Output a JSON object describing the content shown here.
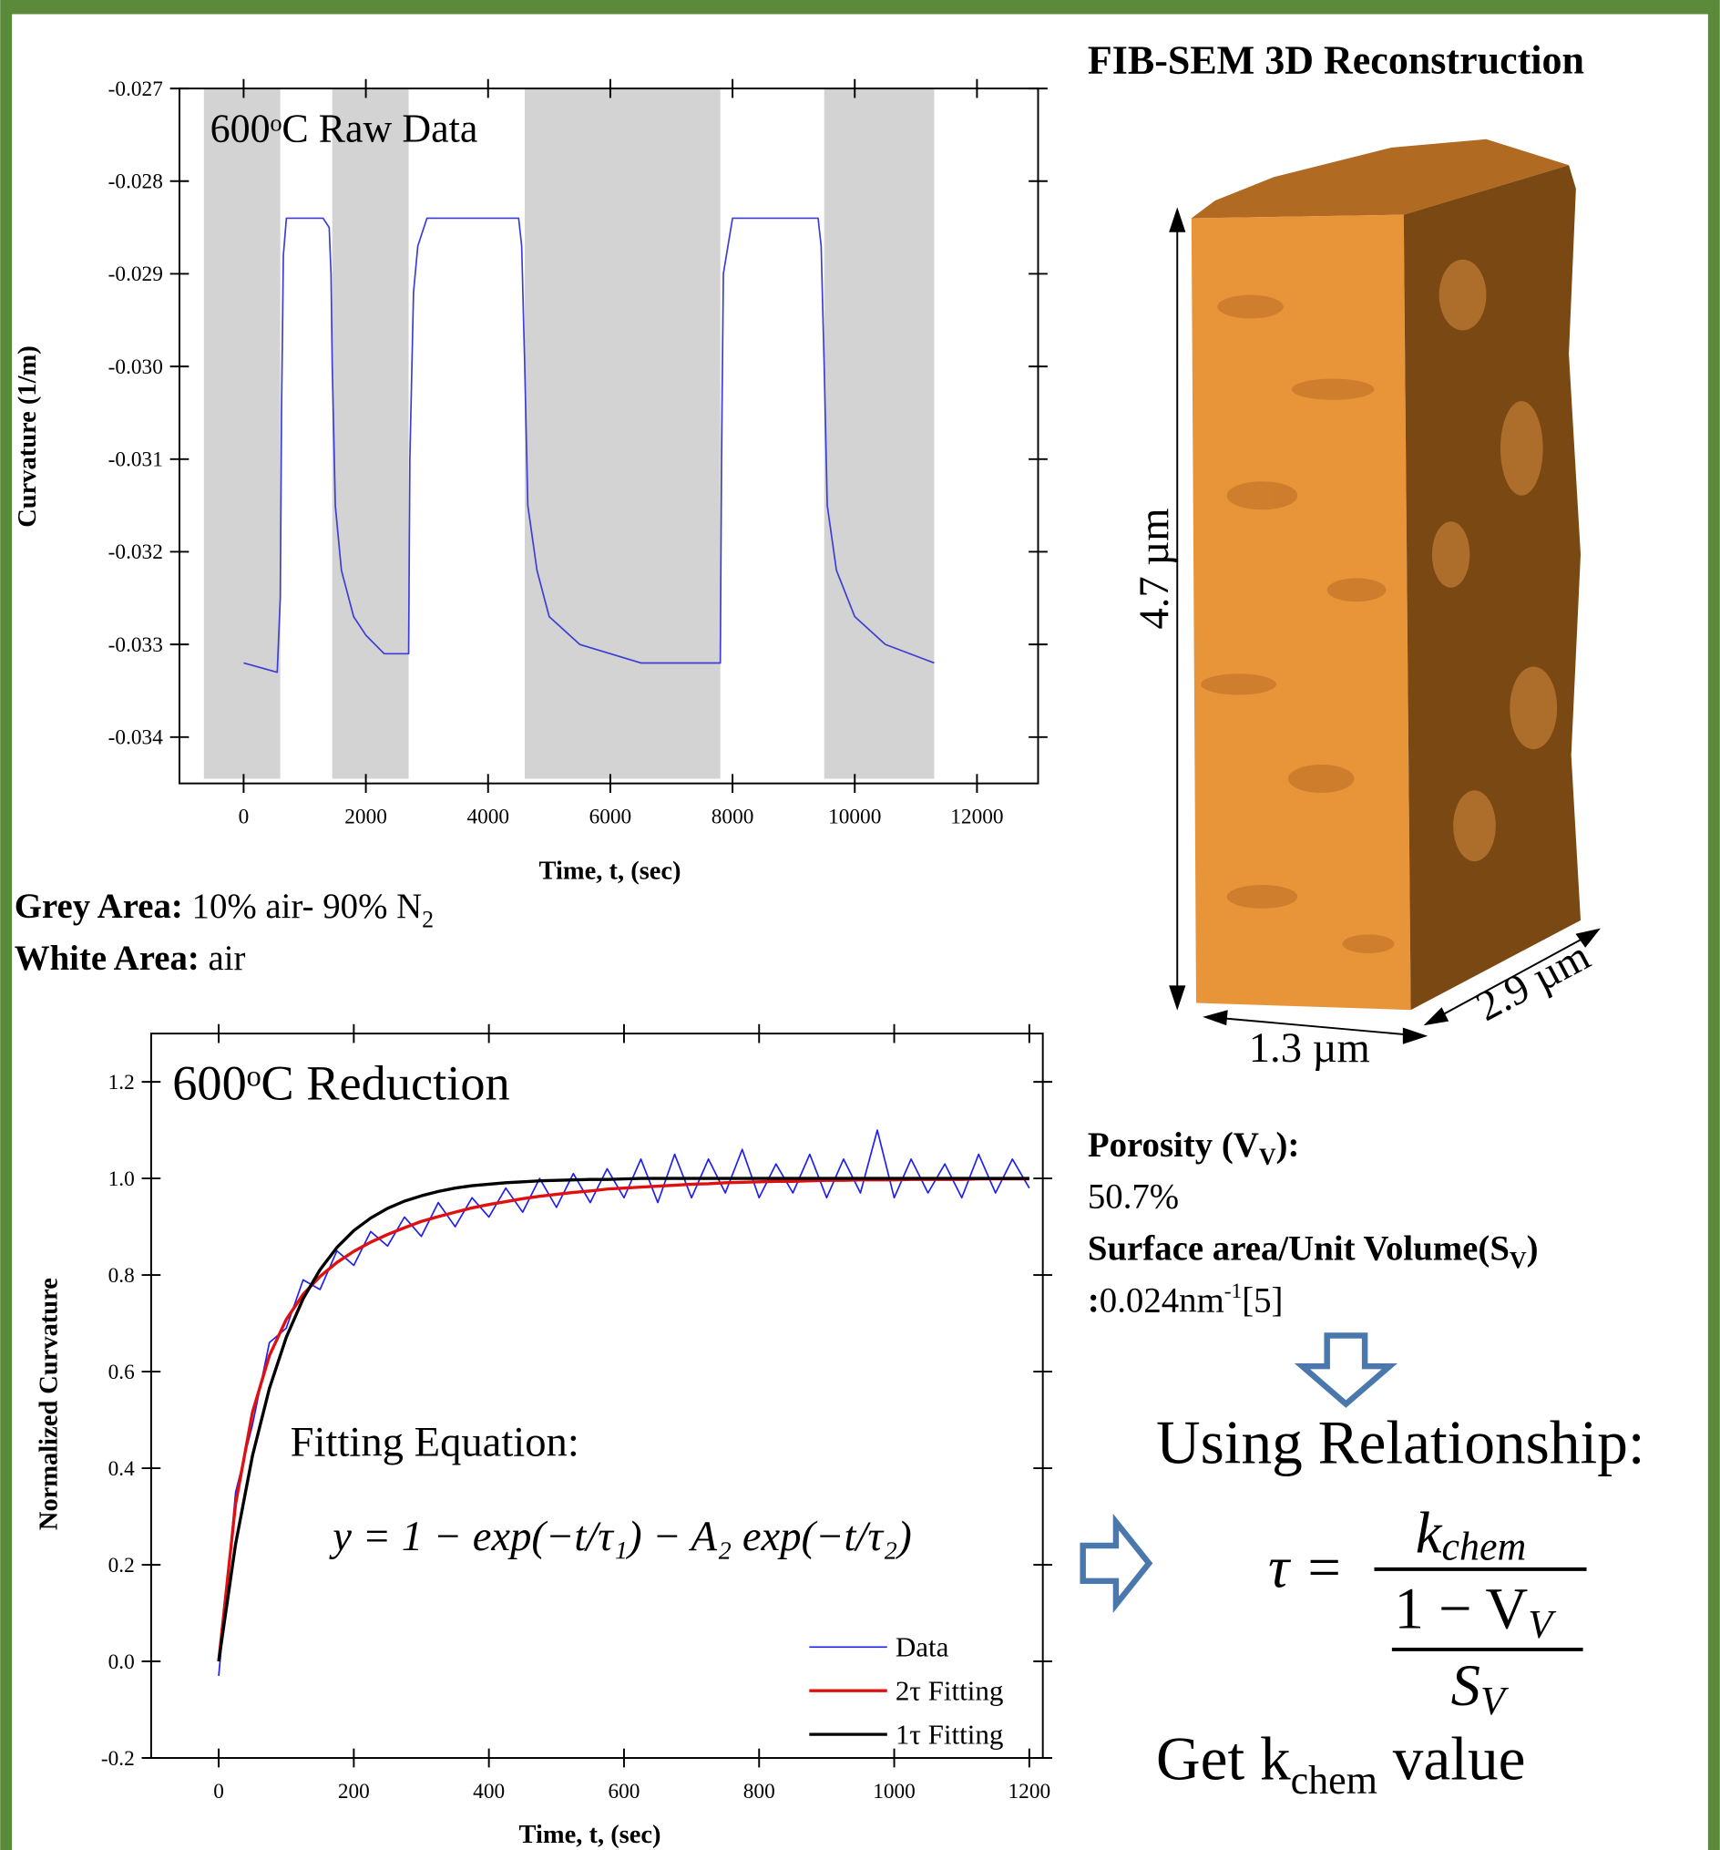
{
  "chart_data": [
    {
      "type": "line",
      "annotation": "600ᵒC Raw Data",
      "xlabel": "Time, t, (sec)",
      "ylabel": "Curvature (1/m)",
      "xlim": [
        -1050,
        13000
      ],
      "ylim": [
        -0.0345,
        -0.027
      ],
      "xticks": [
        0,
        2000,
        4000,
        6000,
        8000,
        10000,
        12000
      ],
      "yticks": [
        -0.027,
        -0.028,
        -0.029,
        {
          "value": -0.03,
          "label": "-0.030"
        },
        -0.031,
        -0.032,
        -0.033,
        -0.034
      ],
      "shaded_regions": [
        [
          -650,
          600
        ],
        [
          1450,
          2700
        ],
        [
          4600,
          7800
        ],
        [
          9500,
          11300
        ]
      ],
      "shade_color": "#d3d3d3",
      "series": [
        {
          "name": null,
          "color": "#3d3dd6",
          "x": [
            0,
            550,
            600,
            620,
            650,
            700,
            1300,
            1400,
            1430,
            1450,
            1500,
            1600,
            1800,
            2000,
            2300,
            2700,
            2720,
            2780,
            2850,
            3000,
            4500,
            4550,
            4600,
            4650,
            4800,
            5000,
            5500,
            6500,
            7800,
            7820,
            7850,
            8000,
            9400,
            9450,
            9500,
            9550,
            9700,
            10000,
            10500,
            11300
          ],
          "values": [
            -0.0332,
            -0.0333,
            -0.0325,
            -0.0305,
            -0.0288,
            -0.0284,
            -0.0284,
            -0.0285,
            -0.029,
            -0.03,
            -0.0315,
            -0.0322,
            -0.0327,
            -0.0329,
            -0.0331,
            -0.0331,
            -0.031,
            -0.0292,
            -0.0287,
            -0.0284,
            -0.0284,
            -0.0287,
            -0.03,
            -0.0315,
            -0.0322,
            -0.0327,
            -0.033,
            -0.0332,
            -0.0332,
            -0.031,
            -0.029,
            -0.0284,
            -0.0284,
            -0.0287,
            -0.03,
            -0.0315,
            -0.0322,
            -0.0327,
            -0.033,
            -0.0332
          ]
        }
      ]
    },
    {
      "type": "line",
      "annotations": [
        "600ᵒC Reduction",
        "Fitting Equation:",
        "y = 1 − exp(−t/τ₁) − A₂ exp(−t/τ₂)"
      ],
      "xlabel": "Time, t, (sec)",
      "ylabel": "Normalized Curvature",
      "xlim": [
        -100,
        1220
      ],
      "ylim": [
        -0.2,
        1.3
      ],
      "xticks": [
        0,
        200,
        400,
        600,
        800,
        1000,
        1200
      ],
      "yticks": [
        -0.2,
        {
          "value": 0,
          "label": "0.0"
        },
        0.2,
        0.4,
        0.6,
        0.8,
        {
          "value": 1,
          "label": "1.0"
        },
        1.2
      ],
      "legend": "lower right",
      "x": [
        0,
        25,
        50,
        75,
        100,
        125,
        150,
        175,
        200,
        225,
        250,
        275,
        300,
        325,
        350,
        375,
        400,
        425,
        450,
        475,
        500,
        525,
        550,
        575,
        600,
        625,
        650,
        675,
        700,
        725,
        750,
        775,
        800,
        825,
        850,
        875,
        900,
        925,
        950,
        975,
        1000,
        1025,
        1050,
        1075,
        1100,
        1125,
        1150,
        1175,
        1200
      ],
      "series": [
        {
          "name": "Data",
          "color": "#2020ee",
          "width": 1.3,
          "values": [
            -0.03,
            0.35,
            0.49,
            0.66,
            0.69,
            0.79,
            0.77,
            0.85,
            0.82,
            0.89,
            0.86,
            0.92,
            0.88,
            0.95,
            0.9,
            0.96,
            0.92,
            0.98,
            0.93,
            1,
            0.94,
            1.01,
            0.95,
            1.02,
            0.96,
            1.04,
            0.95,
            1.05,
            0.96,
            1.04,
            0.97,
            1.06,
            0.96,
            1.03,
            0.97,
            1.05,
            0.96,
            1.04,
            0.97,
            1.1,
            0.96,
            1.04,
            0.97,
            1.03,
            0.96,
            1.05,
            0.97,
            1.04,
            0.98
          ]
        },
        {
          "name": "2τ Fitting",
          "color": "#e01010",
          "width": 2.6,
          "values": [
            0,
            0.326,
            0.516,
            0.633,
            0.708,
            0.76,
            0.797,
            0.826,
            0.849,
            0.868,
            0.884,
            0.898,
            0.911,
            0.921,
            0.93,
            0.939,
            0.946,
            0.952,
            0.958,
            0.963,
            0.967,
            0.971,
            0.974,
            0.978,
            0.98,
            0.982,
            0.984,
            0.986,
            0.988,
            0.989,
            0.991,
            0.992,
            0.993,
            0.994,
            0.994,
            0.995,
            0.996,
            0.996,
            0.997,
            0.997,
            0.997,
            0.998,
            0.998,
            0.998,
            0.998,
            0.999,
            0.999,
            0.999,
            0.999
          ]
        },
        {
          "name": "1τ Fitting",
          "color": "#000000",
          "width": 2.6,
          "values": [
            0,
            0.243,
            0.426,
            0.565,
            0.671,
            0.751,
            0.811,
            0.857,
            0.892,
            0.918,
            0.938,
            0.953,
            0.964,
            0.973,
            0.98,
            0.985,
            0.988,
            0.991,
            0.993,
            0.995,
            0.996,
            0.997,
            0.998,
            0.998,
            0.999,
            1,
            1,
            1,
            1,
            1,
            1,
            1,
            1,
            1,
            1,
            1,
            1,
            1,
            1,
            1,
            1,
            1,
            1,
            1,
            1,
            1,
            1,
            1,
            1
          ]
        }
      ]
    }
  ],
  "legend_notes": {
    "grey_label": "Grey Area:",
    "grey_text": " 10% air- 90% N",
    "grey_sub": "2",
    "white_label": "White Area:",
    "white_text": " air"
  },
  "reconstruction": {
    "title": "FIB-SEM 3D Reconstruction",
    "height": "4.7 µm",
    "width": "1.3 µm",
    "depth": "2.9 µm"
  },
  "properties": {
    "porosity_label": "Porosity (V",
    "porosity_sub": "V",
    "porosity_end": "):",
    "porosity_value": "50.7%",
    "surface_label": "Surface area/Unit Volume(S",
    "surface_sub": "V",
    "surface_end": ")",
    "surface_colon": ":",
    "surface_value": "0.024nm",
    "surface_sup": "-1",
    "surface_ref": "[5]"
  },
  "relationship": {
    "heading": "Using Relationship:",
    "tau": "τ =",
    "k": "k",
    "k_sub": "chem",
    "num": "1 − V",
    "num_sub": "V",
    "den": "S",
    "den_sub": "V",
    "result_pre": "Get k",
    "result_sub": "chem",
    "result_post": " value"
  }
}
